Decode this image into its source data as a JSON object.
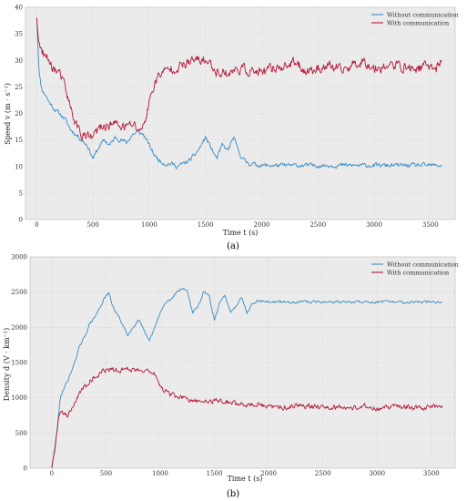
{
  "chart_data": [
    {
      "type": "line",
      "panel": "a",
      "caption": "(a)",
      "xlabel": "Time t (s)",
      "ylabel": "Speed v (m · s⁻¹)",
      "xlim": [
        -100,
        3720
      ],
      "ylim": [
        0,
        40
      ],
      "xticks": [
        0,
        500,
        1000,
        1500,
        2000,
        2500,
        3000,
        3500
      ],
      "yticks": [
        0,
        5,
        10,
        15,
        20,
        25,
        30,
        35,
        40
      ],
      "grid": true,
      "legend_position": "top-right",
      "noise_seed": 11,
      "series": [
        {
          "name": "Without communication",
          "color": "#3a8cc4",
          "noise": 0.35,
          "x": [
            0,
            10,
            20,
            40,
            60,
            80,
            100,
            150,
            200,
            250,
            300,
            350,
            400,
            450,
            500,
            550,
            600,
            650,
            700,
            750,
            800,
            850,
            900,
            950,
            1000,
            1050,
            1100,
            1150,
            1200,
            1250,
            1300,
            1350,
            1400,
            1450,
            1500,
            1550,
            1600,
            1650,
            1700,
            1750,
            1800,
            1850,
            1900,
            2000,
            2500,
            3000,
            3500,
            3600
          ],
          "y": [
            38,
            33,
            28,
            25,
            24,
            23.5,
            22.5,
            21,
            20,
            19,
            17,
            16,
            15,
            14,
            11.5,
            13.5,
            15,
            14,
            15.5,
            15,
            14.5,
            16,
            16.5,
            16,
            14,
            12,
            11,
            10.5,
            10.5,
            10,
            10.5,
            11,
            12,
            13.5,
            15.5,
            13.5,
            11.5,
            14,
            13,
            15.5,
            12.5,
            11,
            10.5,
            10.2,
            10.2,
            10.2,
            10.2,
            10.2
          ]
        },
        {
          "name": "With communication",
          "color": "#b5183a",
          "noise": 0.8,
          "x": [
            0,
            10,
            20,
            40,
            60,
            80,
            100,
            150,
            200,
            250,
            300,
            350,
            400,
            450,
            500,
            550,
            600,
            650,
            700,
            750,
            800,
            850,
            900,
            950,
            1000,
            1050,
            1100,
            1150,
            1200,
            1300,
            1400,
            1500,
            1600,
            1700,
            1800,
            1900,
            2000,
            2100,
            2200,
            2300,
            2400,
            2500,
            2600,
            2700,
            2800,
            2900,
            3000,
            3100,
            3200,
            3300,
            3400,
            3500,
            3550,
            3600
          ],
          "y": [
            38,
            35,
            33,
            32,
            31,
            30.5,
            30,
            28.5,
            27.5,
            25,
            21,
            18,
            16,
            15.5,
            15.5,
            17,
            17.5,
            18,
            18,
            17.5,
            17.5,
            18,
            17,
            17.5,
            22,
            26,
            27.5,
            28,
            28.5,
            29,
            30,
            30,
            28,
            27.5,
            28.5,
            28,
            27.5,
            28.5,
            29,
            29.5,
            28,
            28.5,
            29,
            28,
            29,
            30,
            28.5,
            29,
            29,
            28.5,
            28.5,
            29,
            28.5,
            30
          ]
        }
      ]
    },
    {
      "type": "line",
      "panel": "b",
      "caption": "(b)",
      "xlabel": "Time t (s)",
      "ylabel": "Density d (V · km⁻¹)",
      "xlim": [
        -200,
        3720
      ],
      "ylim": [
        0,
        3000
      ],
      "xticks": [
        0,
        500,
        1000,
        1500,
        2000,
        2500,
        3000,
        3500
      ],
      "yticks": [
        0,
        500,
        1000,
        1500,
        2000,
        2500,
        3000
      ],
      "grid": true,
      "legend_position": "top-right",
      "noise_seed": 29,
      "series": [
        {
          "name": "Without communication",
          "color": "#3a8cc4",
          "noise": 15,
          "x": [
            0,
            30,
            60,
            80,
            100,
            150,
            200,
            250,
            300,
            350,
            400,
            450,
            500,
            530,
            560,
            600,
            650,
            700,
            750,
            800,
            850,
            900,
            950,
            1000,
            1050,
            1100,
            1150,
            1200,
            1250,
            1300,
            1350,
            1400,
            1450,
            1500,
            1550,
            1600,
            1650,
            1700,
            1750,
            1800,
            1850,
            1900,
            2000,
            2500,
            3000,
            3500,
            3600
          ],
          "y": [
            0,
            300,
            700,
            1000,
            1100,
            1250,
            1450,
            1700,
            1850,
            2050,
            2150,
            2300,
            2450,
            2480,
            2300,
            2200,
            2050,
            1900,
            2000,
            2100,
            1950,
            1800,
            2000,
            2200,
            2350,
            2400,
            2500,
            2550,
            2520,
            2200,
            2300,
            2500,
            2450,
            2100,
            2350,
            2450,
            2200,
            2300,
            2450,
            2200,
            2350,
            2380,
            2360,
            2360,
            2360,
            2360,
            2360
          ]
        },
        {
          "name": "With communication",
          "color": "#b5183a",
          "noise": 30,
          "x": [
            0,
            30,
            60,
            80,
            100,
            150,
            200,
            250,
            300,
            350,
            400,
            450,
            500,
            550,
            600,
            650,
            700,
            750,
            800,
            850,
            900,
            950,
            1000,
            1050,
            1100,
            1200,
            1300,
            1400,
            1500,
            1600,
            1700,
            1800,
            1900,
            2000,
            2100,
            2200,
            2300,
            2400,
            2500,
            2600,
            2700,
            2800,
            2900,
            3000,
            3100,
            3200,
            3300,
            3400,
            3500,
            3550,
            3600
          ],
          "y": [
            0,
            300,
            700,
            850,
            780,
            750,
            900,
            1050,
            1150,
            1250,
            1300,
            1350,
            1400,
            1400,
            1380,
            1400,
            1420,
            1390,
            1400,
            1400,
            1380,
            1350,
            1150,
            1080,
            1050,
            1000,
            950,
            950,
            960,
            950,
            920,
            900,
            900,
            870,
            860,
            880,
            900,
            880,
            880,
            870,
            860,
            860,
            880,
            850,
            860,
            880,
            860,
            850,
            880,
            870,
            880
          ]
        }
      ]
    }
  ]
}
